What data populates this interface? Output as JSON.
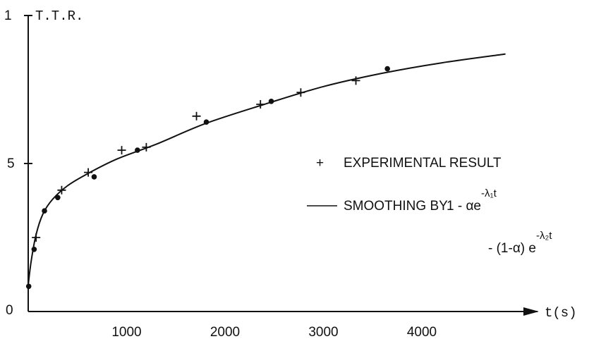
{
  "chart_data": {
    "type": "scatter",
    "title": "",
    "ylabel": "T.T.R.",
    "xlabel": "t(s)",
    "xlim": [
      0,
      5000
    ],
    "ylim": [
      0,
      1
    ],
    "x_ticks": [
      1000,
      2000,
      3000,
      4000
    ],
    "y_tick_labels": [
      "1",
      "5",
      "0"
    ],
    "grid": false,
    "legend_position": "center-right",
    "series": [
      {
        "name": "EXPERIMENTAL RESULT",
        "marker": "plus",
        "points": [
          {
            "x": 80,
            "y": 0.25
          },
          {
            "x": 340,
            "y": 0.41
          },
          {
            "x": 610,
            "y": 0.47
          },
          {
            "x": 950,
            "y": 0.545
          },
          {
            "x": 1200,
            "y": 0.555
          },
          {
            "x": 1710,
            "y": 0.66
          },
          {
            "x": 2360,
            "y": 0.7
          },
          {
            "x": 2770,
            "y": 0.74
          },
          {
            "x": 3330,
            "y": 0.78
          }
        ]
      },
      {
        "name": "",
        "marker": "dot",
        "points": [
          {
            "x": 5,
            "y": 0.085
          },
          {
            "x": 60,
            "y": 0.21
          },
          {
            "x": 165,
            "y": 0.34
          },
          {
            "x": 300,
            "y": 0.385
          },
          {
            "x": 670,
            "y": 0.455
          },
          {
            "x": 1110,
            "y": 0.545
          },
          {
            "x": 1810,
            "y": 0.64
          },
          {
            "x": 2470,
            "y": 0.71
          },
          {
            "x": 3650,
            "y": 0.82
          }
        ]
      },
      {
        "name": "SMOOTHING BY",
        "marker": "line",
        "points": [
          {
            "x": 0,
            "y": 0.09
          },
          {
            "x": 30,
            "y": 0.17
          },
          {
            "x": 80,
            "y": 0.26
          },
          {
            "x": 150,
            "y": 0.33
          },
          {
            "x": 250,
            "y": 0.38
          },
          {
            "x": 400,
            "y": 0.425
          },
          {
            "x": 600,
            "y": 0.465
          },
          {
            "x": 900,
            "y": 0.515
          },
          {
            "x": 1300,
            "y": 0.565
          },
          {
            "x": 1800,
            "y": 0.635
          },
          {
            "x": 2400,
            "y": 0.7
          },
          {
            "x": 3000,
            "y": 0.76
          },
          {
            "x": 3600,
            "y": 0.805
          },
          {
            "x": 4200,
            "y": 0.84
          },
          {
            "x": 4850,
            "y": 0.87
          }
        ]
      }
    ],
    "legend": {
      "experimental_label": "EXPERIMENTAL RESULT",
      "smoothing_label": "SMOOTHING BY",
      "formula_line1_main": "1 - αe",
      "formula_line1_exp": "-λ₁t",
      "formula_line2_main": "- (1-α) e",
      "formula_line2_exp": "-λ₂t"
    }
  }
}
